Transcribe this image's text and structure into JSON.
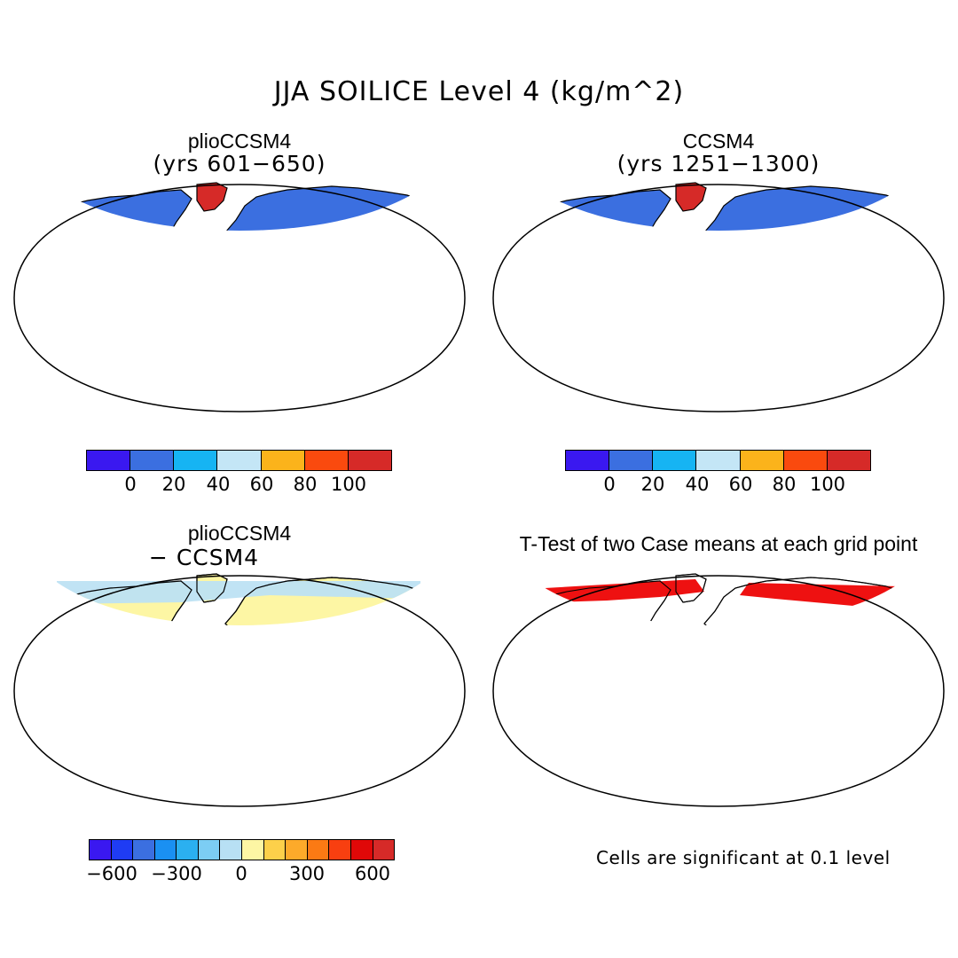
{
  "title": "JJA SOILICE Level 4 (kg/m^2)",
  "colors": {
    "land": "#3b6fe0",
    "ice": "#d62a28",
    "light_blue": "#bde2f3",
    "cyan": "#1ab0f0",
    "diff_land": "#fdf6a4",
    "sig": "#ee1111",
    "coast": "#000000"
  },
  "panels": {
    "top_left": {
      "title": "plioCCSM4",
      "subtitle": "(yrs 601−650)"
    },
    "top_right": {
      "title": "CCSM4",
      "subtitle": "(yrs 1251−1300)"
    },
    "bottom_left": {
      "title": "plioCCSM4",
      "subtitle": "− CCSM4"
    },
    "bottom_right": {
      "title": "T-Test of two Case means at each grid point"
    }
  },
  "colorbar_abs": {
    "colors": [
      "#3a18f0",
      "#3b6fe0",
      "#16b4f3",
      "#c4e6f6",
      "#fbb31b",
      "#fa4a0e",
      "#d62a28"
    ],
    "labels": [
      "0",
      "20",
      "40",
      "60",
      "80",
      "100"
    ]
  },
  "colorbar_diff": {
    "colors": [
      "#3a18f0",
      "#1f3cf4",
      "#3b6fe0",
      "#1a90f2",
      "#2bb0f0",
      "#7ccdf4",
      "#b8e0f4",
      "#fdf6a4",
      "#fdd04a",
      "#fdaa2a",
      "#fb7a14",
      "#f83f10",
      "#e00808",
      "#d62a28"
    ],
    "labels": [
      "−600",
      "−300",
      "0",
      "300",
      "600"
    ]
  },
  "note": "Cells are significant at 0.1 level"
}
